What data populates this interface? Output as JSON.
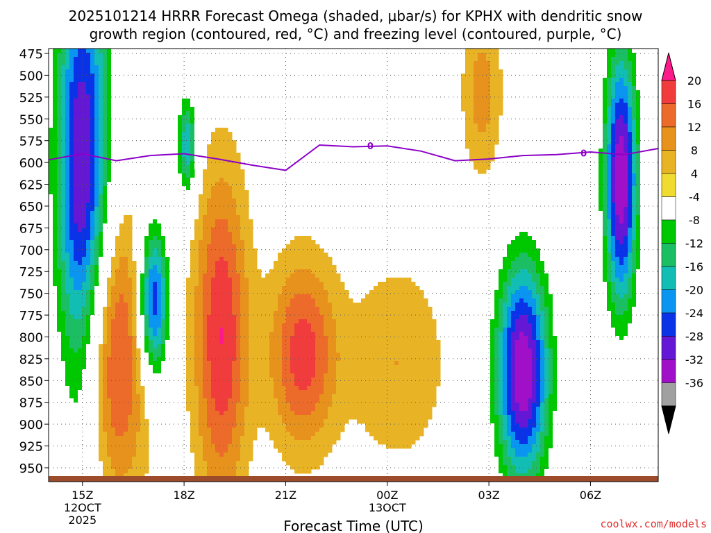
{
  "chart_data": {
    "type": "heatmap",
    "title_line1": "2025101214 HRRR Forecast Omega (shaded, μbar/s) for KPHX with dendritic snow",
    "title_line2": "growth region (contoured, red, °C) and freezing level (contoured, purple, °C)",
    "xlabel": "Forecast Time (UTC)",
    "watermark": "coolwx.com/models",
    "x_ticks": [
      {
        "h": 15,
        "label": "15Z",
        "sub1": "12OCT",
        "sub2": "2025"
      },
      {
        "h": 18,
        "label": "18Z"
      },
      {
        "h": 21,
        "label": "21Z"
      },
      {
        "h": 24,
        "label": "00Z",
        "sub1": "13OCT"
      },
      {
        "h": 27,
        "label": "03Z"
      },
      {
        "h": 30,
        "label": "06Z"
      }
    ],
    "xlim": [
      14,
      32
    ],
    "y_ticks": [
      "475",
      "500",
      "525",
      "550",
      "575",
      "600",
      "625",
      "650",
      "675",
      "700",
      "725",
      "750",
      "775",
      "800",
      "825",
      "850",
      "875",
      "900",
      "925",
      "950"
    ],
    "y_axis": "pressure (hPa), inverted",
    "colorbar": {
      "ticks": [
        "20",
        "16",
        "12",
        "8",
        "4",
        "-4",
        "-8",
        "-12",
        "-16",
        "-20",
        "-24",
        "-28",
        "-32",
        "-36"
      ],
      "colors": [
        "#ff1a8c",
        "#f03c3c",
        "#ec6a2a",
        "#e8921e",
        "#e8b426",
        "#f0dc30",
        "#ffffff",
        "#00c800",
        "#1cbe64",
        "#12beb4",
        "#0a96f0",
        "#0a32e6",
        "#6418d6",
        "#a010c8",
        "#a0a0a0",
        "#000000"
      ]
    },
    "freezing_level": {
      "label": "0",
      "points": [
        [
          14,
          597
        ],
        [
          15,
          590
        ],
        [
          16,
          598
        ],
        [
          17,
          592
        ],
        [
          18,
          590
        ],
        [
          19,
          596
        ],
        [
          20,
          603
        ],
        [
          21,
          609
        ],
        [
          22,
          580
        ],
        [
          23,
          582
        ],
        [
          24,
          581
        ],
        [
          25,
          587
        ],
        [
          26,
          598
        ],
        [
          27,
          596
        ],
        [
          28,
          592
        ],
        [
          29,
          591
        ],
        [
          30,
          588
        ],
        [
          31,
          591
        ],
        [
          32,
          584
        ]
      ]
    },
    "omega_features": [
      {
        "x": 15,
        "p": 650,
        "rx": 0.8,
        "rp": 300,
        "v": -36
      },
      {
        "x": 15.7,
        "p": 820,
        "rx": 1.2,
        "rp": 170,
        "v": 22
      },
      {
        "x": 17.1,
        "p": 760,
        "rx": 0.45,
        "rp": 90,
        "v": -30
      },
      {
        "x": 18.1,
        "p": 580,
        "rx": 0.3,
        "rp": 60,
        "v": -20
      },
      {
        "x": 19.1,
        "p": 800,
        "rx": 0.8,
        "rp": 190,
        "v": 20
      },
      {
        "x": 21.5,
        "p": 820,
        "rx": 1.0,
        "rp": 110,
        "v": 18
      },
      {
        "x": 24.3,
        "p": 830,
        "rx": 1.5,
        "rp": 120,
        "v": 8
      },
      {
        "x": 26.8,
        "p": 520,
        "rx": 0.6,
        "rp": 100,
        "v": 10
      },
      {
        "x": 28.0,
        "p": 840,
        "rx": 0.8,
        "rp": 130,
        "v": -36
      },
      {
        "x": 30.9,
        "p": 620,
        "rx": 0.5,
        "rp": 150,
        "v": -36
      }
    ]
  }
}
